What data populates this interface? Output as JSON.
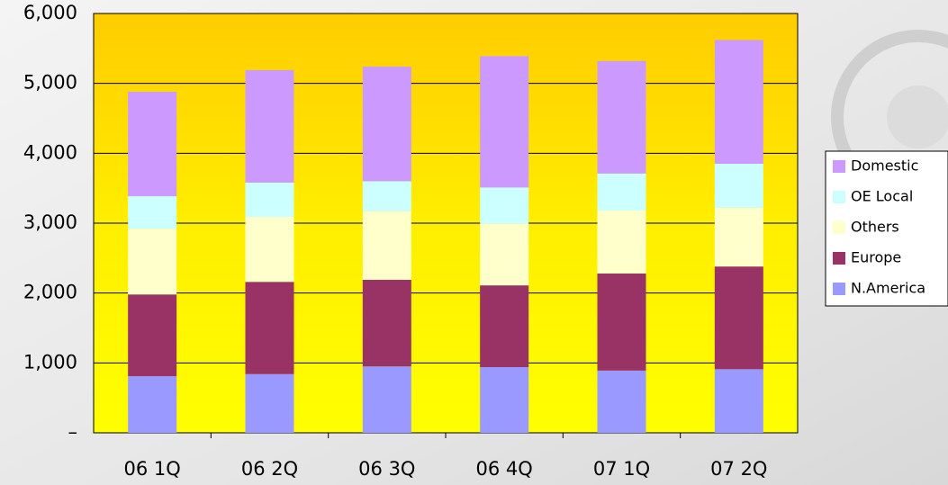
{
  "chart_data": {
    "type": "stacked_bar",
    "categories": [
      "06 1Q",
      "06 2Q",
      "06 3Q",
      "06 4Q",
      "07 1Q",
      "07 2Q"
    ],
    "series": [
      {
        "name": "N.America",
        "color": "#9999ff",
        "values": [
          810,
          840,
          950,
          940,
          890,
          910
        ]
      },
      {
        "name": "Europe",
        "color": "#993366",
        "values": [
          1170,
          1320,
          1240,
          1170,
          1390,
          1470
        ]
      },
      {
        "name": "Others",
        "color": "#ffffcc",
        "values": [
          940,
          930,
          980,
          880,
          900,
          840
        ]
      },
      {
        "name": "OE Local",
        "color": "#ccffff",
        "values": [
          465,
          490,
          430,
          520,
          530,
          630
        ]
      },
      {
        "name": "Domestic",
        "color": "#cc99ff",
        "values": [
          1495,
          1610,
          1640,
          1880,
          1610,
          1770
        ]
      }
    ],
    "ylim": [
      0,
      6000
    ],
    "yticks": [
      {
        "value": 0,
        "label": "–"
      },
      {
        "value": 1000,
        "label": "1,000"
      },
      {
        "value": 2000,
        "label": "2,000"
      },
      {
        "value": 3000,
        "label": "3,000"
      },
      {
        "value": 4000,
        "label": "4,000"
      },
      {
        "value": 5000,
        "label": "5,000"
      },
      {
        "value": 6000,
        "label": "6,000"
      }
    ],
    "grid": true,
    "legend": "right"
  }
}
